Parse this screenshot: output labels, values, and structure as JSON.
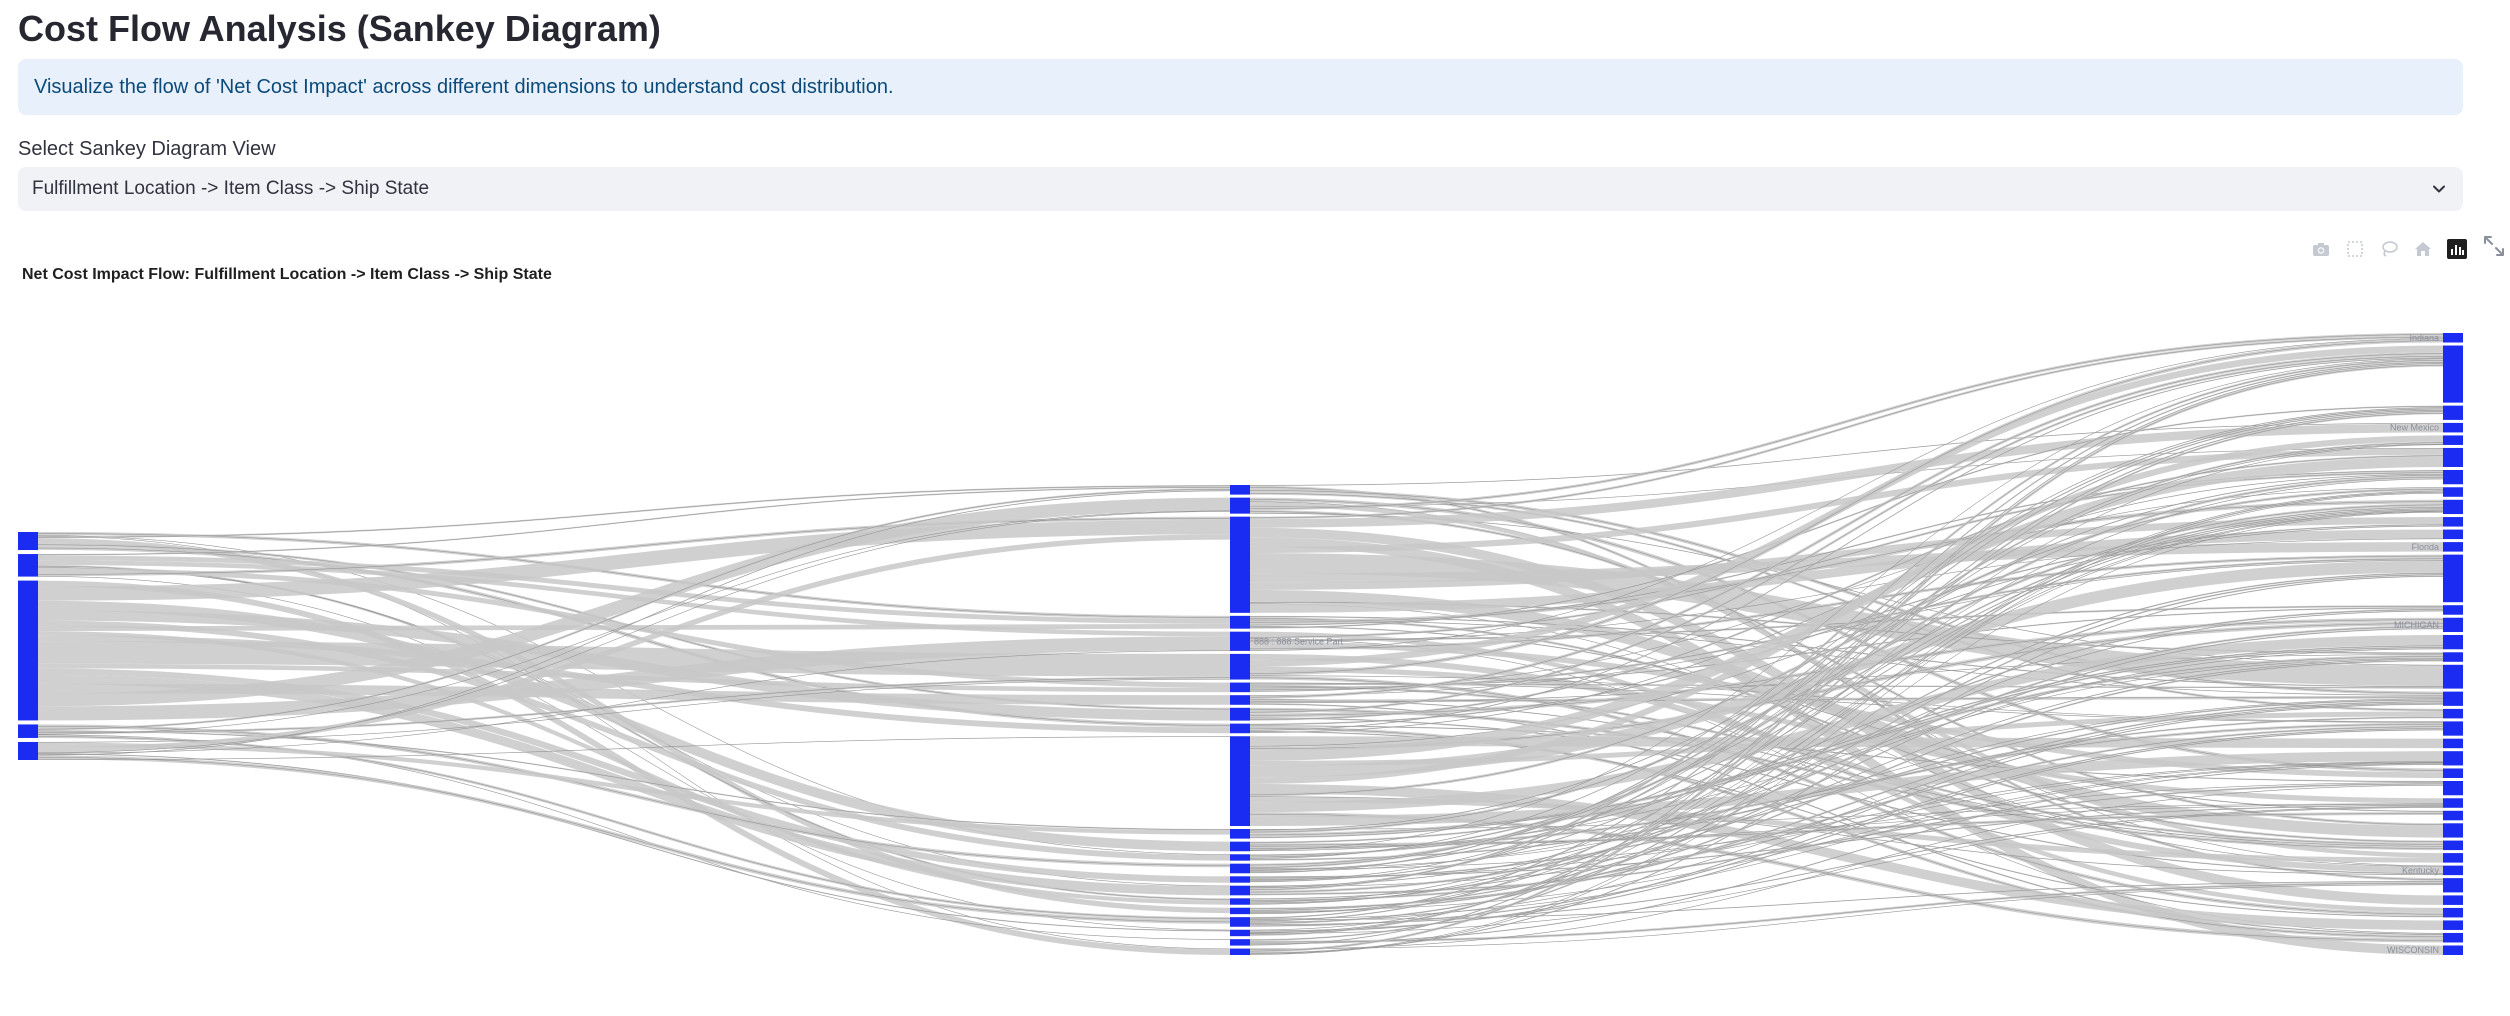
{
  "page": {
    "title": "Cost Flow Analysis (Sankey Diagram)",
    "info": "Visualize the flow of 'Net Cost Impact' across different dimensions to understand cost distribution.",
    "select_label": "Select Sankey Diagram View",
    "select_value": "Fulfillment Location -> Item Class -> Ship State"
  },
  "modebar": {
    "icons": [
      "camera-icon",
      "box-select-icon",
      "lasso-icon",
      "home-icon",
      "plotly-logo-icon"
    ],
    "expand_icon": "fullscreen-expand-icon"
  },
  "colors": {
    "node": "#1a2cf2",
    "link": "#c8c8c8",
    "info_bg": "#e8f1fb",
    "info_text": "#0b4a7a",
    "select_bg": "#f0f2f6"
  },
  "chart_data": {
    "type": "sankey",
    "title": "Net Cost Impact Flow: Fulfillment Location -> Item Class -> Ship State",
    "stages": [
      "Fulfillment Location",
      "Item Class",
      "Ship State"
    ],
    "nodes": {
      "sources": [
        {
          "label": "",
          "value": 8
        },
        {
          "label": "",
          "value": 10
        },
        {
          "label": "",
          "value": 62
        },
        {
          "label": "",
          "value": 6
        },
        {
          "label": "",
          "value": 8
        }
      ],
      "items": [
        {
          "label": "",
          "value": 3
        },
        {
          "label": "",
          "value": 5
        },
        {
          "label": "",
          "value": 30
        },
        {
          "label": "",
          "value": 4
        },
        {
          "label": "888 : 888 Service Part",
          "value": 6
        },
        {
          "label": "",
          "value": 8
        },
        {
          "label": "",
          "value": 3
        },
        {
          "label": "",
          "value": 3
        },
        {
          "label": "",
          "value": 4
        },
        {
          "label": "",
          "value": 3
        },
        {
          "label": "",
          "value": 28
        },
        {
          "label": "",
          "value": 3
        },
        {
          "label": "",
          "value": 3
        },
        {
          "label": "",
          "value": 2
        },
        {
          "label": "",
          "value": 3
        },
        {
          "label": "",
          "value": 2
        },
        {
          "label": "",
          "value": 3
        },
        {
          "label": "",
          "value": 2
        },
        {
          "label": "",
          "value": 2
        },
        {
          "label": "",
          "value": 3
        },
        {
          "label": "",
          "value": 2
        },
        {
          "label": "",
          "value": 2
        },
        {
          "label": "",
          "value": 2
        }
      ],
      "states": [
        {
          "label": "Indiana",
          "value": 2
        },
        {
          "label": "",
          "value": 12
        },
        {
          "label": "",
          "value": 3
        },
        {
          "label": "New Mexico",
          "value": 2
        },
        {
          "label": "",
          "value": 2
        },
        {
          "label": "",
          "value": 4
        },
        {
          "label": "",
          "value": 3
        },
        {
          "label": "",
          "value": 2
        },
        {
          "label": "",
          "value": 3
        },
        {
          "label": "",
          "value": 2
        },
        {
          "label": "",
          "value": 2
        },
        {
          "label": "Florida",
          "value": 2
        },
        {
          "label": "",
          "value": 10
        },
        {
          "label": "",
          "value": 2
        },
        {
          "label": "MICHIGAN",
          "value": 3
        },
        {
          "label": "",
          "value": 3
        },
        {
          "label": "",
          "value": 2
        },
        {
          "label": "",
          "value": 5
        },
        {
          "label": "",
          "value": 3
        },
        {
          "label": "",
          "value": 2
        },
        {
          "label": "",
          "value": 3
        },
        {
          "label": "",
          "value": 2
        },
        {
          "label": "",
          "value": 3
        },
        {
          "label": "",
          "value": 2
        },
        {
          "label": "",
          "value": 3
        },
        {
          "label": "",
          "value": 2
        },
        {
          "label": "",
          "value": 2
        },
        {
          "label": "",
          "value": 3
        },
        {
          "label": "",
          "value": 2
        },
        {
          "label": "",
          "value": 2
        },
        {
          "label": "Kentucky",
          "value": 2
        },
        {
          "label": "",
          "value": 3
        },
        {
          "label": "",
          "value": 2
        },
        {
          "label": "",
          "value": 2
        },
        {
          "label": "",
          "value": 2
        },
        {
          "label": "",
          "value": 2
        },
        {
          "label": "WISCONSIN",
          "value": 2
        }
      ]
    }
  }
}
